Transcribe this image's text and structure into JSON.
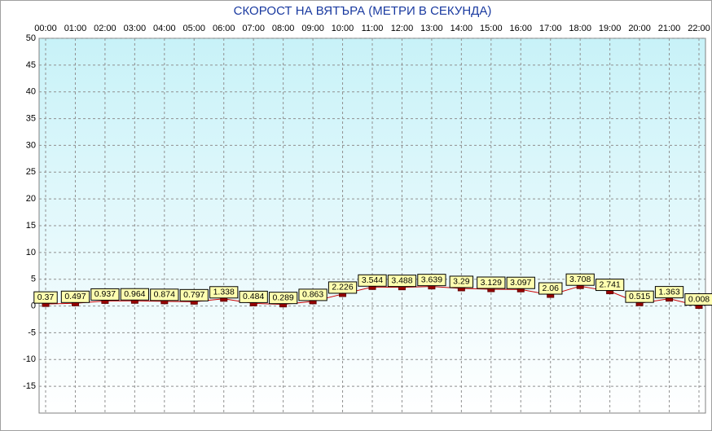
{
  "chart_data": {
    "type": "line",
    "title": "СКОРОСТ НА ВЯТЪРА (МЕТРИ В СЕКУНДА)",
    "categories": [
      "00:00",
      "01:00",
      "02:00",
      "03:00",
      "04:00",
      "05:00",
      "06:00",
      "07:00",
      "08:00",
      "09:00",
      "10:00",
      "11:00",
      "12:00",
      "13:00",
      "14:00",
      "15:00",
      "16:00",
      "17:00",
      "18:00",
      "19:00",
      "20:00",
      "21:00",
      "22:00"
    ],
    "series": [
      {
        "color": "#cc0000",
        "marker_color": "#990000",
        "label_color": "#ffffb0",
        "values": [
          0.37,
          0.497,
          0.937,
          0.964,
          0.874,
          0.797,
          1.338,
          0.484,
          0.289,
          0.863,
          2.226,
          3.544,
          3.488,
          3.639,
          3.29,
          3.129,
          3.097,
          2.06,
          3.708,
          2.741,
          0.515,
          1.363,
          0.008
        ]
      }
    ],
    "ylim": [
      -20,
      50
    ],
    "yticks": [
      -15,
      -10,
      -5,
      0,
      5,
      10,
      15,
      20,
      25,
      30,
      35,
      40,
      45,
      50
    ],
    "grid": true
  }
}
